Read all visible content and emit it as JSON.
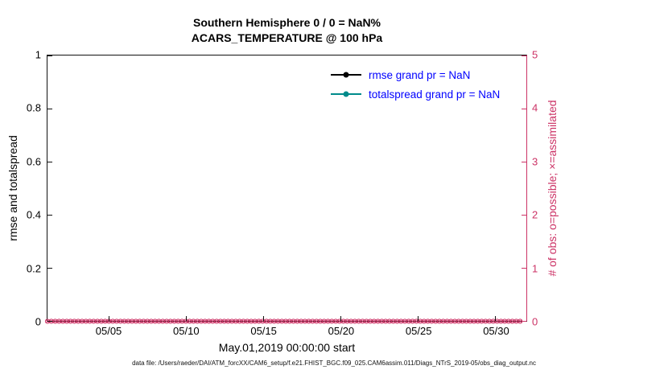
{
  "colors": {
    "obs_pink": "#cc3366",
    "teal": "#008b8b",
    "rmse_black": "#000000",
    "legend_text": "#0000ff",
    "axis": "#111111"
  },
  "chart_data": {
    "type": "line",
    "title": "Southern Hemisphere 0 / 0 = NaN%",
    "subtitle": "ACARS_TEMPERATURE @ 100 hPa",
    "xlabel": "May.01,2019 00:00:00 start",
    "ylabel_left": "rmse and totalspread",
    "ylabel_right": "# of obs: o=possible; ×=assimilated",
    "ylim_left": [
      0,
      1
    ],
    "yticks_left": [
      {
        "value": 0,
        "label": "0"
      },
      {
        "value": 0.2,
        "label": "0.2"
      },
      {
        "value": 0.4,
        "label": "0.4"
      },
      {
        "value": 0.6,
        "label": "0.6"
      },
      {
        "value": 0.8,
        "label": "0.8"
      },
      {
        "value": 1,
        "label": "1"
      }
    ],
    "ylim_right": [
      0,
      5
    ],
    "yticks_right": [
      {
        "value": 0,
        "label": "0"
      },
      {
        "value": 1,
        "label": "1"
      },
      {
        "value": 2,
        "label": "2"
      },
      {
        "value": 3,
        "label": "3"
      },
      {
        "value": 4,
        "label": "4"
      },
      {
        "value": 5,
        "label": "5"
      }
    ],
    "xlim_days": [
      1,
      32
    ],
    "xticks": [
      {
        "day": 5,
        "label": "05/05"
      },
      {
        "day": 10,
        "label": "05/10"
      },
      {
        "day": 15,
        "label": "05/15"
      },
      {
        "day": 20,
        "label": "05/20"
      },
      {
        "day": 25,
        "label": "05/25"
      },
      {
        "day": 30,
        "label": "05/30"
      }
    ],
    "grid": false,
    "legend_position": "top-center-inside",
    "series": [
      {
        "name": "rmse",
        "legend": "rmse grand pr = NaN",
        "color": "#000000",
        "marker": "filled-circle",
        "grand_mean": "NaN",
        "values": []
      },
      {
        "name": "totalspread",
        "legend": "totalspread grand pr = NaN",
        "color": "#008b8b",
        "marker": "filled-circle",
        "grand_mean": "NaN",
        "values": []
      }
    ],
    "obs_markers": {
      "description": "possible (o) and assimilated (x) observation counts, all zero, plotted on right axis at y=0",
      "start_day": 1,
      "end_day": 31.75,
      "step_days": 0.25,
      "possible_count": 0,
      "assimilated_count": 0
    },
    "caption": "data file: /Users/raeder/DAI/ATM_forcXX/CAM6_setup/f.e21.FHIST_BGC.f09_025.CAM6assim.011/Diags_NTrS_2019-05/obs_diag_output.nc"
  }
}
